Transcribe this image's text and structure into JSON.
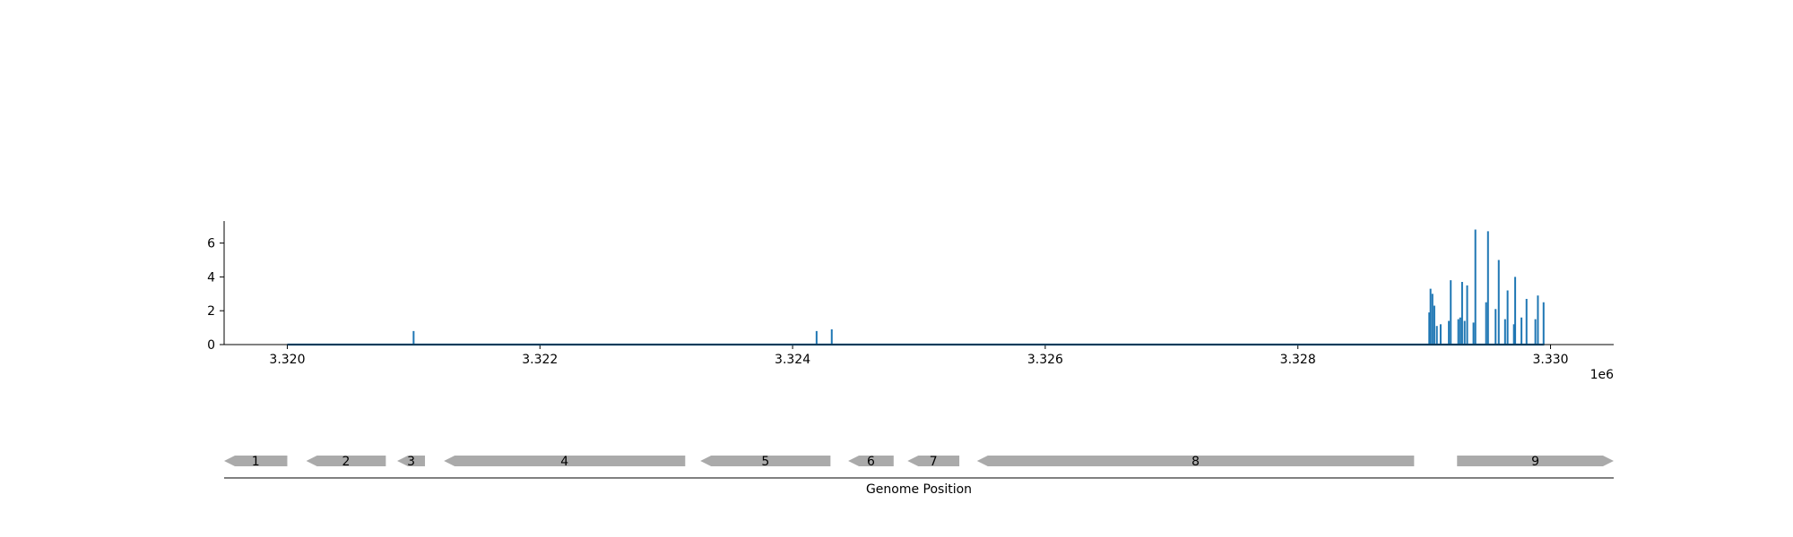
{
  "chart_data": [
    {
      "type": "line",
      "color": "#1f77b4",
      "xlim": [
        3319500,
        3330500
      ],
      "ylim": [
        0,
        7.3
      ],
      "x_ticks": [
        {
          "value": 3320000,
          "label": "3.320"
        },
        {
          "value": 3322000,
          "label": "3.322"
        },
        {
          "value": 3324000,
          "label": "3.324"
        },
        {
          "value": 3326000,
          "label": "3.326"
        },
        {
          "value": 3328000,
          "label": "3.328"
        },
        {
          "value": 3330000,
          "label": "3.330"
        }
      ],
      "x_offset_label": "1e6",
      "y_ticks": [
        {
          "value": 0,
          "label": "0"
        },
        {
          "value": 2,
          "label": "2"
        },
        {
          "value": 4,
          "label": "4"
        },
        {
          "value": 6,
          "label": "6"
        }
      ],
      "baseline": {
        "x_start": 3320000,
        "x_end": 3329950,
        "y": 0
      },
      "peaks": [
        {
          "x": 3321000,
          "y": 0.8
        },
        {
          "x": 3324190,
          "y": 0.8
        },
        {
          "x": 3324310,
          "y": 0.9
        },
        {
          "x": 3329040,
          "y": 1.9
        },
        {
          "x": 3329050,
          "y": 3.3
        },
        {
          "x": 3329065,
          "y": 3.0
        },
        {
          "x": 3329080,
          "y": 2.3
        },
        {
          "x": 3329100,
          "y": 1.1
        },
        {
          "x": 3329130,
          "y": 1.2
        },
        {
          "x": 3329195,
          "y": 1.4
        },
        {
          "x": 3329210,
          "y": 3.8
        },
        {
          "x": 3329270,
          "y": 1.5
        },
        {
          "x": 3329285,
          "y": 1.6
        },
        {
          "x": 3329300,
          "y": 3.7
        },
        {
          "x": 3329320,
          "y": 1.4
        },
        {
          "x": 3329340,
          "y": 3.5
        },
        {
          "x": 3329390,
          "y": 1.3
        },
        {
          "x": 3329405,
          "y": 6.8
        },
        {
          "x": 3329490,
          "y": 2.5
        },
        {
          "x": 3329505,
          "y": 6.7
        },
        {
          "x": 3329565,
          "y": 2.1
        },
        {
          "x": 3329590,
          "y": 5.0
        },
        {
          "x": 3329640,
          "y": 1.5
        },
        {
          "x": 3329660,
          "y": 3.2
        },
        {
          "x": 3329710,
          "y": 1.2
        },
        {
          "x": 3329720,
          "y": 4.0
        },
        {
          "x": 3329770,
          "y": 1.6
        },
        {
          "x": 3329810,
          "y": 2.7
        },
        {
          "x": 3329880,
          "y": 1.5
        },
        {
          "x": 3329900,
          "y": 2.9
        },
        {
          "x": 3329945,
          "y": 2.5
        }
      ]
    },
    {
      "type": "gene_track",
      "xlabel": "Genome Position",
      "xlim": [
        3319500,
        3330500
      ],
      "feature_color": "#aaaaaa",
      "genes": [
        {
          "label": "1",
          "start": 3319500,
          "end": 3320000,
          "strand": "-"
        },
        {
          "label": "2",
          "start": 3320150,
          "end": 3320780,
          "strand": "-"
        },
        {
          "label": "3",
          "start": 3320870,
          "end": 3321090,
          "strand": "-"
        },
        {
          "label": "4",
          "start": 3321240,
          "end": 3323150,
          "strand": "-"
        },
        {
          "label": "5",
          "start": 3323270,
          "end": 3324300,
          "strand": "-"
        },
        {
          "label": "6",
          "start": 3324440,
          "end": 3324800,
          "strand": "-"
        },
        {
          "label": "7",
          "start": 3324910,
          "end": 3325320,
          "strand": "-"
        },
        {
          "label": "8",
          "start": 3325460,
          "end": 3328920,
          "strand": "-"
        },
        {
          "label": "9",
          "start": 3329260,
          "end": 3330500,
          "strand": "+"
        }
      ]
    }
  ]
}
